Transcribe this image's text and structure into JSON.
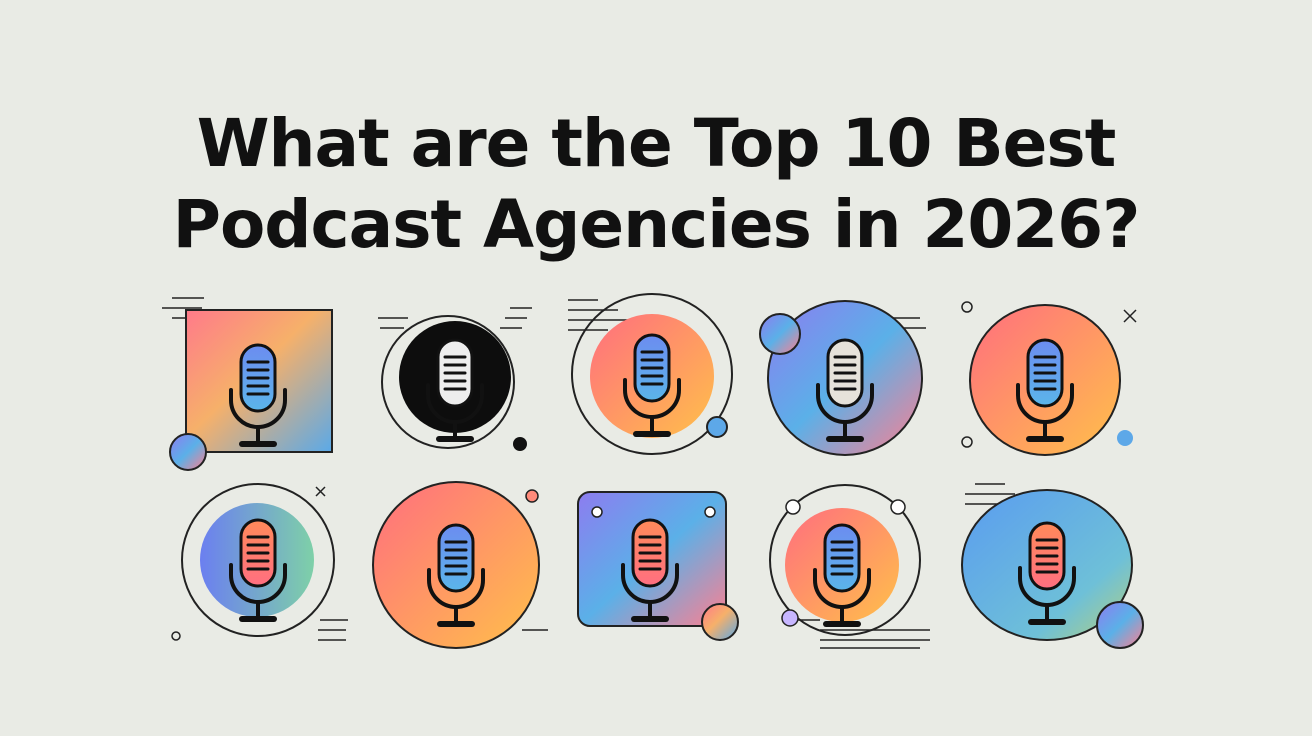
{
  "title": {
    "lines": [
      "What are the Top 10 Best",
      "Podcast Agencies in 2026?"
    ]
  }
}
